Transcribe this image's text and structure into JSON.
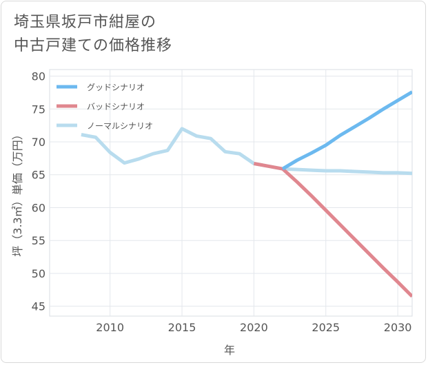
{
  "title": {
    "line1": "埼玉県坂戸市紺屋の",
    "line2": "中古戸建ての価格推移"
  },
  "chart_data": {
    "type": "line",
    "title": "埼玉県坂戸市紺屋の中古戸建ての価格推移",
    "xlabel": "年",
    "ylabel": "坪（3.3㎡）単価（万円）",
    "xlim": [
      2005.8,
      2031
    ],
    "ylim": [
      43.5,
      81
    ],
    "x_ticks": [
      2010,
      2015,
      2020,
      2025,
      2030
    ],
    "y_ticks": [
      45,
      50,
      55,
      60,
      65,
      70,
      75,
      80
    ],
    "grid": true,
    "legend_position": "top-left",
    "series": [
      {
        "name": "グッドシナリオ",
        "color": "#6cb9ef",
        "x": [
          2022,
          2023,
          2024,
          2025,
          2026,
          2027,
          2028,
          2029,
          2030,
          2031
        ],
        "y": [
          65.9,
          67.2,
          68.3,
          69.5,
          71.0,
          72.3,
          73.6,
          75.0,
          76.3,
          77.6
        ]
      },
      {
        "name": "バッドシナリオ",
        "color": "#e0878f",
        "x": [
          2020,
          2021,
          2022,
          2023,
          2024,
          2025,
          2026,
          2027,
          2028,
          2029,
          2030,
          2031
        ],
        "y": [
          66.7,
          66.3,
          65.9,
          63.9,
          61.8,
          59.6,
          57.4,
          55.2,
          53.0,
          50.8,
          48.7,
          46.5
        ]
      },
      {
        "name": "ノーマルシナリオ",
        "color": "#b8dcee",
        "x": [
          2008,
          2009,
          2010,
          2011,
          2012,
          2013,
          2014,
          2015,
          2016,
          2017,
          2018,
          2019,
          2020,
          2021,
          2022,
          2023,
          2024,
          2025,
          2026,
          2027,
          2028,
          2029,
          2030,
          2031
        ],
        "y": [
          71.1,
          70.7,
          68.4,
          66.8,
          67.4,
          68.2,
          68.7,
          72.0,
          70.9,
          70.5,
          68.5,
          68.2,
          66.7,
          66.3,
          65.9,
          65.8,
          65.7,
          65.6,
          65.6,
          65.5,
          65.4,
          65.3,
          65.3,
          65.2
        ]
      }
    ]
  }
}
